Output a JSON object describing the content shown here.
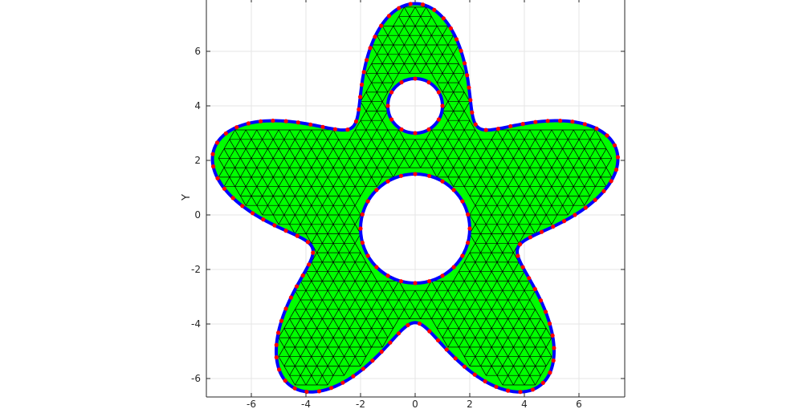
{
  "figure": {
    "ylabel": "Y",
    "x_ticks": [
      "-6",
      "-4",
      "-2",
      "0",
      "2",
      "4",
      "6"
    ],
    "y_ticks": [
      "6",
      "4",
      "2",
      "0",
      "-2",
      "-4",
      "-6"
    ],
    "grid": true,
    "xlim": [
      -7.65,
      7.65
    ],
    "ylim": [
      -6.65,
      7.85
    ]
  },
  "mesh": {
    "shape": "five-lobed star with two circular holes",
    "outer_boundary_formula": "r = 5.85 + 1.9*cos(5*(theta - 90deg))",
    "hole_large": {
      "center": [
        0,
        -0.5
      ],
      "radius": 2.0
    },
    "hole_small": {
      "center": [
        0,
        4.0
      ],
      "radius": 1.0
    },
    "colors": {
      "fill": "#00ff00",
      "edges": "#000000",
      "boundary": "#0000ff",
      "boundary_nodes": "#ff0000",
      "grid": "#e6e6e6",
      "axes": "#262626"
    }
  }
}
